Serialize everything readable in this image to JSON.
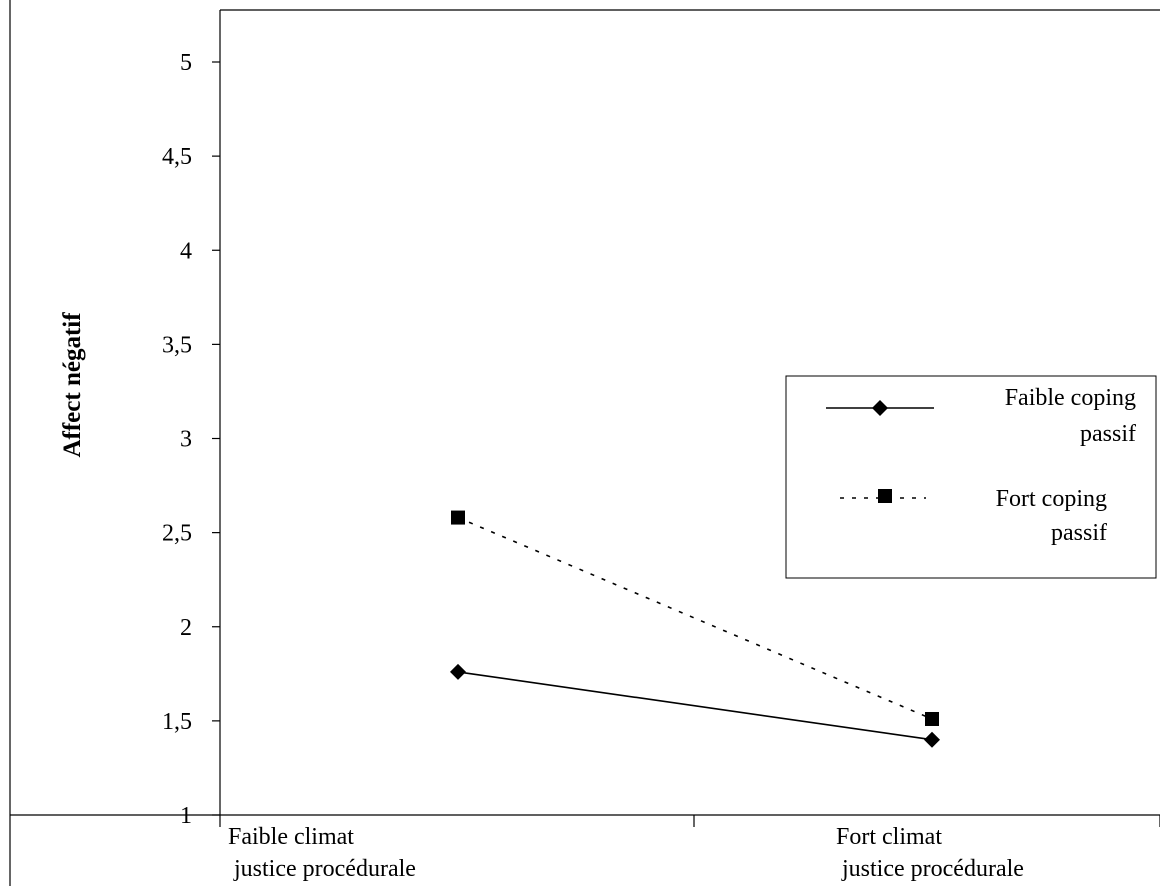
{
  "chart_data": {
    "type": "line",
    "title": "",
    "xlabel": "",
    "ylabel": "Affect négatif",
    "categories": [
      [
        "Faible climat",
        "justice procédurale"
      ],
      [
        "Fort climat",
        "justice procédurale"
      ]
    ],
    "ylim": [
      1,
      5
    ],
    "yticks": [
      "1",
      "1,5",
      "2",
      "2,5",
      "3",
      "3,5",
      "4",
      "4,5",
      "5"
    ],
    "ytick_values": [
      1,
      1.5,
      2,
      2.5,
      3,
      3.5,
      4,
      4.5,
      5
    ],
    "grid": false,
    "legend_position": "right",
    "series": [
      {
        "name": [
          "Faible coping",
          "passif"
        ],
        "values": [
          1.76,
          1.4
        ],
        "marker": "diamond",
        "line_style": "solid",
        "color": "#000000"
      },
      {
        "name": [
          "Fort coping",
          "passif"
        ],
        "values": [
          2.58,
          1.51
        ],
        "marker": "square",
        "line_style": "dashed",
        "color": "#000000"
      }
    ]
  }
}
